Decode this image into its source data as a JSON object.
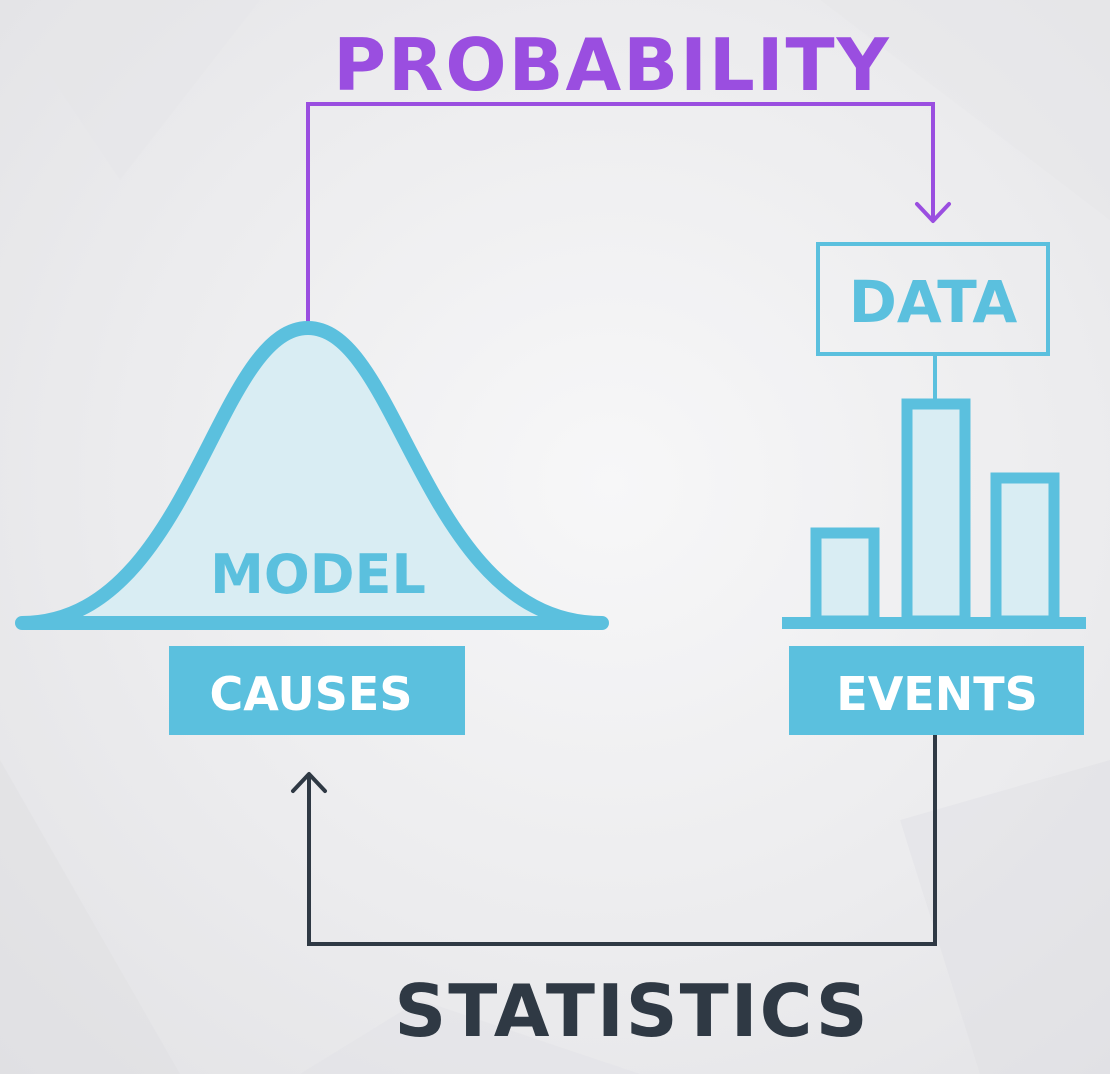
{
  "colors": {
    "probability": "#9a4ee0",
    "statistics": "#2f3944",
    "accent": "#5bc0de",
    "accent_fill": "#d9edf3",
    "box_text": "#ffffff"
  },
  "labels": {
    "probability": "PROBABILITY",
    "statistics": "STATISTICS",
    "model": "MODEL",
    "causes": "CAUSES",
    "events": "EVENTS",
    "data": "DATA"
  },
  "icons": {
    "bell_curve": "bell-curve-icon",
    "bar_chart": "bar-chart-icon",
    "arrow_down": "arrow-down-icon",
    "arrow_up": "arrow-up-icon"
  }
}
